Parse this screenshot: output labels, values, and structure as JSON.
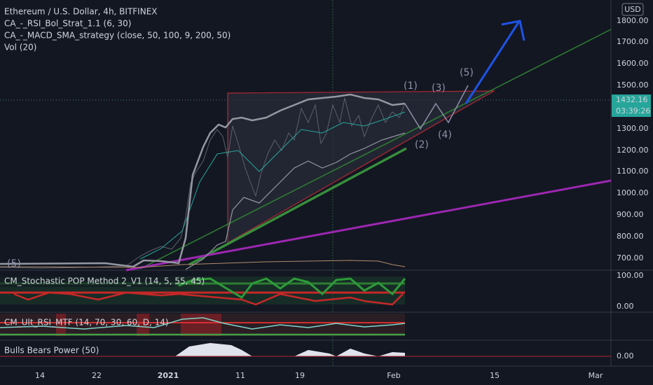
{
  "header": {
    "title": "Ethereum / U.S. Dollar, 4h, BITFINEX",
    "indicators": [
      "CA_-_RSI_Bol_Strat_1.1 (6, 30)",
      "CA_-_MACD_SMA_strategy (close, 50, 100, 9, 200, 50)",
      "Vol (20)"
    ]
  },
  "waves": [
    "(1)",
    "(2)",
    "(3)",
    "(4)",
    "(5)",
    "(5)"
  ],
  "price_axis": {
    "currency": "USD",
    "labels": [
      "1800.00",
      "1700.00",
      "1600.00",
      "1500.00",
      "1300.00",
      "1200.00",
      "1100.00",
      "1000.00",
      "900.00",
      "800.00",
      "700.00"
    ],
    "current_price": "1432.16",
    "countdown": "03:39:26"
  },
  "panes": [
    {
      "label": "CM_Stochastic POP Method 2_V1 (14, 5, 55, 45)",
      "axis": [
        "100.00",
        "0.00"
      ]
    },
    {
      "label": "CM_Ult_RSI_MTF (14, 70, 30, 60, D, 14)"
    },
    {
      "label": "Bulls Bears Power (50)",
      "axis": [
        "0.00"
      ]
    }
  ],
  "time_axis": [
    "14",
    "22",
    "2021",
    "11",
    "19",
    "Feb",
    "15",
    "Mar"
  ]
}
